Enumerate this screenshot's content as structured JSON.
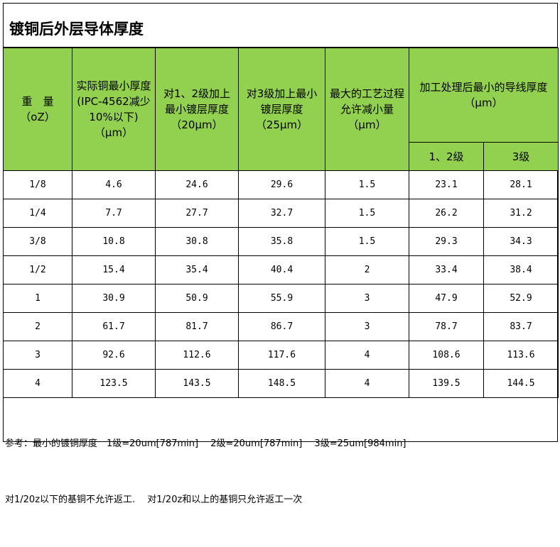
{
  "title": "镀铜后外层导体厚度",
  "headers": {
    "weight": "重　量\n（oZ）",
    "actual_copper": "实际铜最小厚度(IPC-4562减少10%以下)\n（μm）",
    "class12_plating": "对1、2级加上最小镀层厚度\n（20μm）",
    "class3_plating": "对3级加上最小镀层厚度\n（25μm）",
    "max_reduction": "最大的工艺过程允许减小量\n（μm）",
    "final_min": "加工处理后最小的导线厚度　　（μm）",
    "final_class12": "1、2级",
    "final_class3": "3级"
  },
  "rows": [
    [
      "1/8",
      "4.6",
      "24.6",
      "29.6",
      "1.5",
      "23.1",
      "28.1"
    ],
    [
      "1/4",
      "7.7",
      "27.7",
      "32.7",
      "1.5",
      "26.2",
      "31.2"
    ],
    [
      "3/8",
      "10.8",
      "30.8",
      "35.8",
      "1.5",
      "29.3",
      "34.3"
    ],
    [
      "1/2",
      "15.4",
      "35.4",
      "40.4",
      "2",
      "33.4",
      "38.4"
    ],
    [
      "1",
      "30.9",
      "50.9",
      "55.9",
      "3",
      "47.9",
      "52.9"
    ],
    [
      "2",
      "61.7",
      "81.7",
      "86.7",
      "3",
      "78.7",
      "83.7"
    ],
    [
      "3",
      "92.6",
      "112.6",
      "117.6",
      "4",
      "108.6",
      "113.6"
    ],
    [
      "4",
      "123.5",
      "143.5",
      "148.5",
      "4",
      "139.5",
      "144.5"
    ]
  ],
  "notes": [
    "参考：最小的镀铜厚度　1级=20um[787min]　 2级=20um[787min]　 3级=25um[984min]",
    "对1/20z以下的基铜不允许返工.　 对1/20z和以上的基铜只允许返工一次"
  ],
  "colors": {
    "header_bg": "#92d050"
  }
}
